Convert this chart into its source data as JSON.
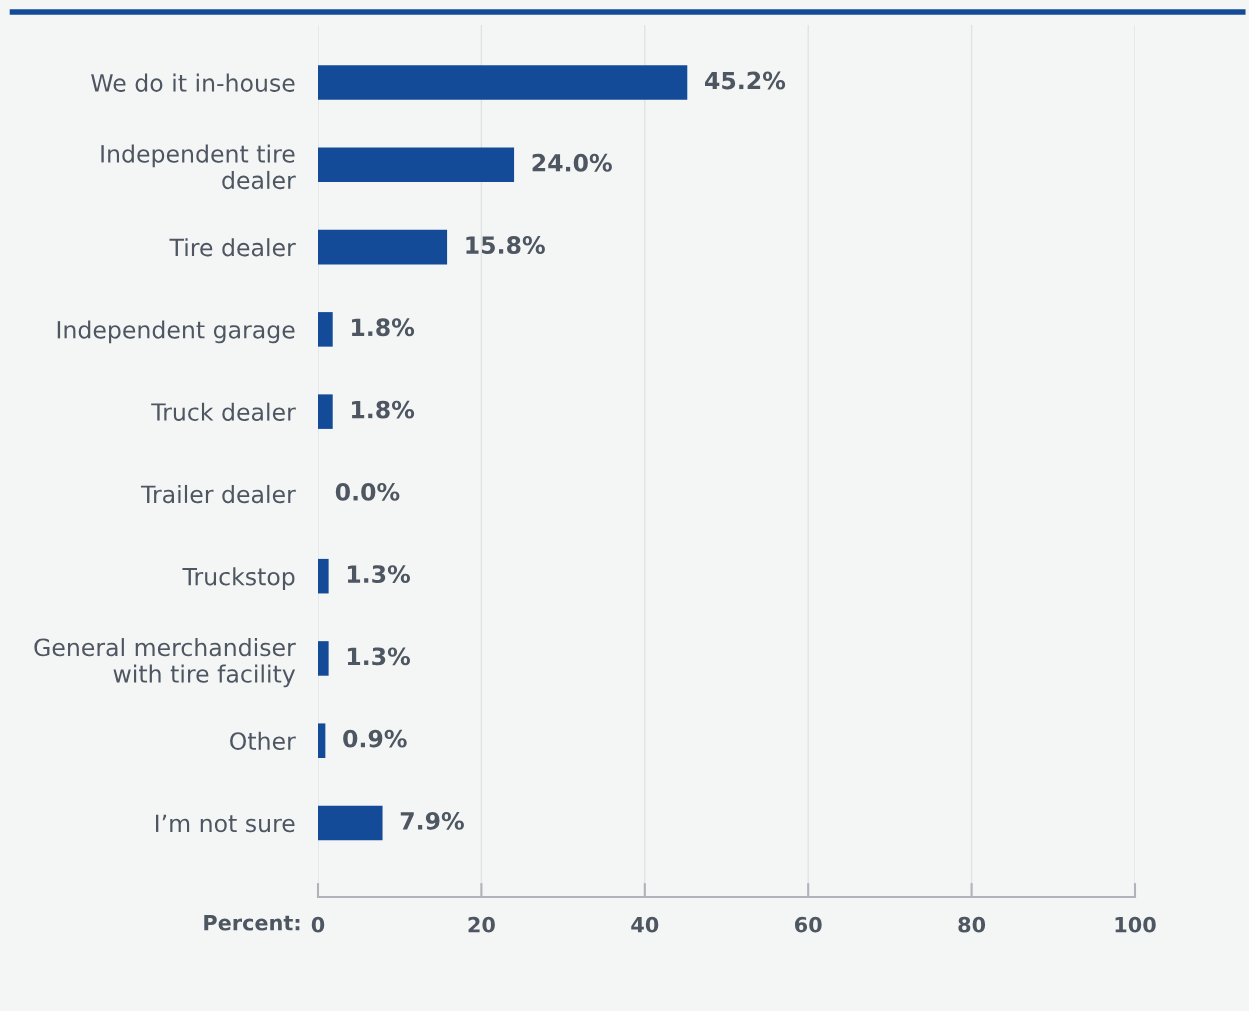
{
  "chart_data": {
    "type": "bar",
    "orientation": "horizontal",
    "categories": [
      "We do it in-house",
      "Independent tire\ndealer",
      "Tire dealer",
      "Independent garage",
      "Truck dealer",
      "Trailer dealer",
      "Truckstop",
      "General merchandiser\nwith tire facility",
      "Other",
      "I’m not sure"
    ],
    "values": [
      45.2,
      24.0,
      15.8,
      1.8,
      1.8,
      0.0,
      1.3,
      1.3,
      0.9,
      7.9
    ],
    "value_labels": [
      "45.2%",
      "24.0%",
      "15.8%",
      "1.8%",
      "1.8%",
      "0.0%",
      "1.3%",
      "1.3%",
      "0.9%",
      "7.9%"
    ],
    "color": "#144b98",
    "xlabel": "Percent:",
    "xlim": [
      0,
      100
    ],
    "xticks": [
      0,
      20,
      40,
      60,
      80,
      100
    ],
    "grid": "x"
  }
}
